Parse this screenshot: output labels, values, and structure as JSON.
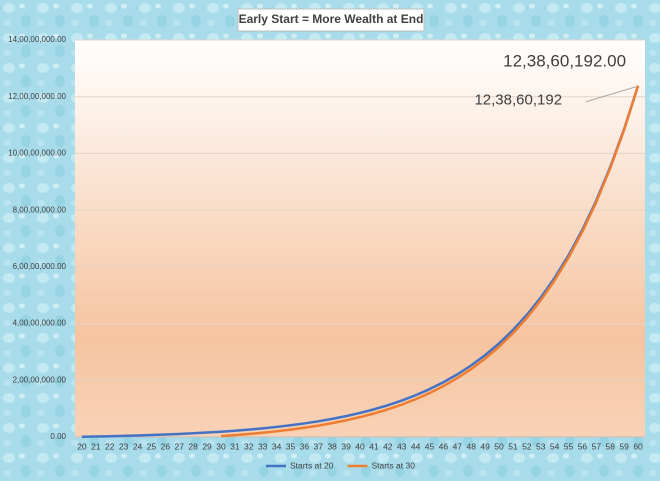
{
  "chart_data": {
    "type": "line",
    "title": "Early Start = More Wealth at End",
    "categories": [
      "20",
      "21",
      "22",
      "23",
      "24",
      "25",
      "26",
      "27",
      "28",
      "29",
      "30",
      "31",
      "32",
      "33",
      "34",
      "35",
      "36",
      "37",
      "38",
      "39",
      "40",
      "41",
      "42",
      "43",
      "44",
      "45",
      "46",
      "47",
      "48",
      "49",
      "50",
      "51",
      "52",
      "53",
      "54",
      "55",
      "56",
      "57",
      "58",
      "59",
      "60"
    ],
    "series": [
      {
        "name": "Starts at 20",
        "color": "#4472c4",
        "values": [
          81000,
          173000,
          278000,
          398000,
          535000,
          691000,
          869000,
          1071000,
          1302000,
          1565000,
          1865000,
          2207000,
          2597000,
          3042000,
          3549000,
          4126000,
          4785000,
          5536000,
          6392000,
          7367000,
          8480000,
          9748000,
          11194000,
          12842000,
          14721000,
          16863000,
          19304000,
          22087000,
          25261000,
          28878000,
          33002000,
          37704000,
          43063000,
          49173000,
          56138000,
          64076000,
          73129000,
          83449000,
          95214000,
          108622000,
          123860192
        ],
        "value_labels": [
          null,
          null,
          null,
          null,
          null,
          null,
          null,
          null,
          null,
          null,
          null,
          null,
          null,
          null,
          null,
          null,
          null,
          null,
          null,
          null,
          null,
          null,
          null,
          null,
          null,
          null,
          null,
          null,
          null,
          null,
          null,
          null,
          null,
          null,
          null,
          null,
          null,
          null,
          null,
          null,
          "12,38,60,192.00"
        ]
      },
      {
        "name": "Starts at 30",
        "color": "#ed7d31",
        "values": [
          null,
          null,
          null,
          null,
          null,
          null,
          null,
          null,
          null,
          null,
          304000,
          650000,
          1045000,
          1495000,
          2008000,
          2593000,
          3260000,
          4020000,
          4886000,
          5874000,
          7000000,
          8284000,
          9748000,
          11416000,
          13318000,
          15487000,
          17959000,
          20776000,
          23990000,
          27650000,
          31827000,
          36585000,
          42012000,
          48197000,
          55248000,
          63287000,
          72450000,
          82896000,
          94806000,
          108383000,
          123860192
        ],
        "value_labels": [
          null,
          null,
          null,
          null,
          null,
          null,
          null,
          null,
          null,
          null,
          null,
          null,
          null,
          null,
          null,
          null,
          null,
          null,
          null,
          null,
          null,
          null,
          null,
          null,
          null,
          null,
          null,
          null,
          null,
          null,
          null,
          null,
          null,
          null,
          null,
          null,
          null,
          null,
          null,
          null,
          "12,38,60,192"
        ]
      }
    ],
    "ylim": [
      0,
      140000000
    ],
    "yticks": [
      {
        "value": 0,
        "label": "0.00"
      },
      {
        "value": 20000000,
        "label": "2,00,00,000.00"
      },
      {
        "value": 40000000,
        "label": "4,00,00,000.00"
      },
      {
        "value": 60000000,
        "label": "6,00,00,000.00"
      },
      {
        "value": 80000000,
        "label": "8,00,00,000.00"
      },
      {
        "value": 100000000,
        "label": "10,00,00,000.00"
      },
      {
        "value": 120000000,
        "label": "12,00,00,000.00"
      },
      {
        "value": 140000000,
        "label": "14,00,00,000.00"
      }
    ],
    "grid": true,
    "legend": "bottom"
  }
}
